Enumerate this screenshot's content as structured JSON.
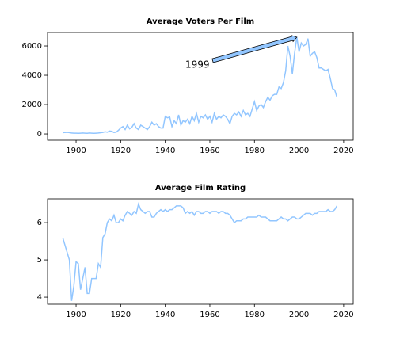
{
  "chart_data": [
    {
      "type": "line",
      "title": "Average Voters Per Film",
      "color": "#92c6ff",
      "x": [
        1894,
        1895,
        1896,
        1897,
        1898,
        1899,
        1900,
        1901,
        1902,
        1903,
        1904,
        1905,
        1906,
        1907,
        1908,
        1909,
        1910,
        1911,
        1912,
        1913,
        1914,
        1915,
        1916,
        1917,
        1918,
        1919,
        1920,
        1921,
        1922,
        1923,
        1924,
        1925,
        1926,
        1927,
        1928,
        1929,
        1930,
        1931,
        1932,
        1933,
        1934,
        1935,
        1936,
        1937,
        1938,
        1939,
        1940,
        1941,
        1942,
        1943,
        1944,
        1945,
        1946,
        1947,
        1948,
        1949,
        1950,
        1951,
        1952,
        1953,
        1954,
        1955,
        1956,
        1957,
        1958,
        1959,
        1960,
        1961,
        1962,
        1963,
        1964,
        1965,
        1966,
        1967,
        1968,
        1969,
        1970,
        1971,
        1972,
        1973,
        1974,
        1975,
        1976,
        1977,
        1978,
        1979,
        1980,
        1981,
        1982,
        1983,
        1984,
        1985,
        1986,
        1987,
        1988,
        1989,
        1990,
        1991,
        1992,
        1993,
        1994,
        1995,
        1996,
        1997,
        1998,
        1999,
        2000,
        2001,
        2002,
        2003,
        2004,
        2005,
        2006,
        2007,
        2008,
        2009,
        2010,
        2011,
        2012,
        2013,
        2014,
        2015,
        2016,
        2017
      ],
      "values": [
        80,
        100,
        110,
        90,
        60,
        50,
        50,
        40,
        50,
        60,
        50,
        40,
        60,
        50,
        40,
        50,
        60,
        80,
        100,
        150,
        120,
        200,
        180,
        100,
        120,
        250,
        400,
        500,
        300,
        600,
        350,
        450,
        700,
        400,
        300,
        600,
        500,
        400,
        300,
        500,
        800,
        600,
        700,
        500,
        400,
        400,
        1200,
        1100,
        1150,
        500,
        900,
        700,
        1300,
        600,
        900,
        800,
        1000,
        700,
        1200,
        900,
        1400,
        800,
        1200,
        1100,
        1300,
        1000,
        1200,
        800,
        1400,
        1000,
        1200,
        1100,
        1300,
        1200,
        1000,
        700,
        1200,
        1400,
        1300,
        1500,
        1200,
        1600,
        1300,
        1400,
        1200,
        1700,
        2200,
        1600,
        1900,
        2000,
        1800,
        2200,
        2500,
        2300,
        2600,
        2700,
        2700,
        3200,
        3100,
        3500,
        4300,
        6000,
        5300,
        4100,
        5500,
        6600,
        5600,
        6200,
        6000,
        6100,
        6500,
        5300,
        5500,
        5600,
        5200,
        4500,
        4500,
        4400,
        4300,
        4400,
        3800,
        3100,
        3000,
        2500
      ],
      "xlim": [
        1887.2,
        2024.3
      ],
      "xticks": [
        1900,
        1920,
        1940,
        1960,
        1980,
        2000,
        2020
      ],
      "ylim": [
        -430,
        6920
      ],
      "yticks": [
        0,
        2000,
        4000,
        6000
      ],
      "annotation": {
        "text": "1999",
        "xy": [
          1999,
          6600
        ],
        "xytext": [
          1949,
          4700
        ]
      }
    },
    {
      "type": "line",
      "title": "Average Film Rating",
      "color": "#92c6ff",
      "x": [
        1894,
        1895,
        1896,
        1897,
        1898,
        1899,
        1900,
        1901,
        1902,
        1903,
        1904,
        1905,
        1906,
        1907,
        1908,
        1909,
        1910,
        1911,
        1912,
        1913,
        1914,
        1915,
        1916,
        1917,
        1918,
        1919,
        1920,
        1921,
        1922,
        1923,
        1924,
        1925,
        1926,
        1927,
        1928,
        1929,
        1930,
        1931,
        1932,
        1933,
        1934,
        1935,
        1936,
        1937,
        1938,
        1939,
        1940,
        1941,
        1942,
        1943,
        1944,
        1945,
        1946,
        1947,
        1948,
        1949,
        1950,
        1951,
        1952,
        1953,
        1954,
        1955,
        1956,
        1957,
        1958,
        1959,
        1960,
        1961,
        1962,
        1963,
        1964,
        1965,
        1966,
        1967,
        1968,
        1969,
        1970,
        1971,
        1972,
        1973,
        1974,
        1975,
        1976,
        1977,
        1978,
        1979,
        1980,
        1981,
        1982,
        1983,
        1984,
        1985,
        1986,
        1987,
        1988,
        1989,
        1990,
        1991,
        1992,
        1993,
        1994,
        1995,
        1996,
        1997,
        1998,
        1999,
        2000,
        2001,
        2002,
        2003,
        2004,
        2005,
        2006,
        2007,
        2008,
        2009,
        2010,
        2011,
        2012,
        2013,
        2014,
        2015,
        2016,
        2017
      ],
      "values": [
        5.6,
        5.4,
        5.2,
        5.0,
        3.9,
        4.3,
        4.95,
        4.9,
        4.2,
        4.5,
        4.8,
        4.1,
        4.1,
        4.5,
        4.5,
        4.5,
        4.9,
        4.8,
        5.6,
        5.7,
        6.0,
        6.1,
        6.05,
        6.2,
        6.0,
        6.0,
        6.1,
        6.05,
        6.2,
        6.3,
        6.25,
        6.2,
        6.3,
        6.25,
        6.5,
        6.35,
        6.3,
        6.25,
        6.3,
        6.3,
        6.15,
        6.15,
        6.25,
        6.3,
        6.35,
        6.3,
        6.35,
        6.3,
        6.35,
        6.35,
        6.4,
        6.45,
        6.45,
        6.45,
        6.4,
        6.25,
        6.3,
        6.25,
        6.3,
        6.2,
        6.3,
        6.3,
        6.25,
        6.25,
        6.3,
        6.3,
        6.25,
        6.3,
        6.3,
        6.3,
        6.25,
        6.3,
        6.3,
        6.25,
        6.25,
        6.2,
        6.1,
        6.0,
        6.05,
        6.05,
        6.05,
        6.1,
        6.1,
        6.15,
        6.15,
        6.15,
        6.15,
        6.15,
        6.2,
        6.15,
        6.15,
        6.15,
        6.1,
        6.05,
        6.05,
        6.05,
        6.05,
        6.1,
        6.15,
        6.1,
        6.1,
        6.05,
        6.1,
        6.15,
        6.15,
        6.1,
        6.1,
        6.15,
        6.2,
        6.25,
        6.25,
        6.25,
        6.2,
        6.25,
        6.25,
        6.3,
        6.3,
        6.3,
        6.3,
        6.35,
        6.3,
        6.3,
        6.35,
        6.45
      ],
      "xlim": [
        1887.2,
        2024.3
      ],
      "xticks": [
        1900,
        1920,
        1940,
        1960,
        1980,
        2000,
        2020
      ],
      "ylim": [
        3.81,
        6.64
      ],
      "yticks": [
        4,
        5,
        6
      ]
    }
  ]
}
